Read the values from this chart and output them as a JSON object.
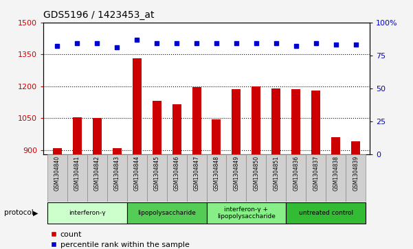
{
  "title": "GDS5196 / 1423453_at",
  "samples": [
    "GSM1304840",
    "GSM1304841",
    "GSM1304842",
    "GSM1304843",
    "GSM1304844",
    "GSM1304845",
    "GSM1304846",
    "GSM1304847",
    "GSM1304848",
    "GSM1304849",
    "GSM1304850",
    "GSM1304851",
    "GSM1304836",
    "GSM1304837",
    "GSM1304838",
    "GSM1304839"
  ],
  "counts": [
    910,
    1055,
    1050,
    910,
    1330,
    1130,
    1115,
    1195,
    1045,
    1185,
    1200,
    1190,
    1185,
    1180,
    960,
    940
  ],
  "percentiles": [
    82,
    84,
    84,
    81,
    87,
    84,
    84,
    84,
    84,
    84,
    84,
    84,
    82,
    84,
    83,
    83
  ],
  "bar_color": "#cc0000",
  "dot_color": "#0000cc",
  "ylim_left": [
    880,
    1500
  ],
  "ylim_right": [
    0,
    100
  ],
  "yticks_left": [
    900,
    1050,
    1200,
    1350,
    1500
  ],
  "yticks_right": [
    0,
    25,
    50,
    75,
    100
  ],
  "groups": [
    {
      "label": "interferon-γ",
      "start": 0,
      "end": 4,
      "color": "#ccffcc"
    },
    {
      "label": "lipopolysaccharide",
      "start": 4,
      "end": 8,
      "color": "#55cc55"
    },
    {
      "label": "interferon-γ +\nlipopolysaccharide",
      "start": 8,
      "end": 12,
      "color": "#88ee88"
    },
    {
      "label": "untreated control",
      "start": 12,
      "end": 16,
      "color": "#33bb33"
    }
  ],
  "legend_count_label": "count",
  "legend_percentile_label": "percentile rank within the sample",
  "title_fontsize": 10,
  "axis_label_color_left": "#cc0000",
  "axis_label_color_right": "#0000cc",
  "sample_box_color": "#d0d0d0",
  "fig_bg_color": "#f4f4f4"
}
